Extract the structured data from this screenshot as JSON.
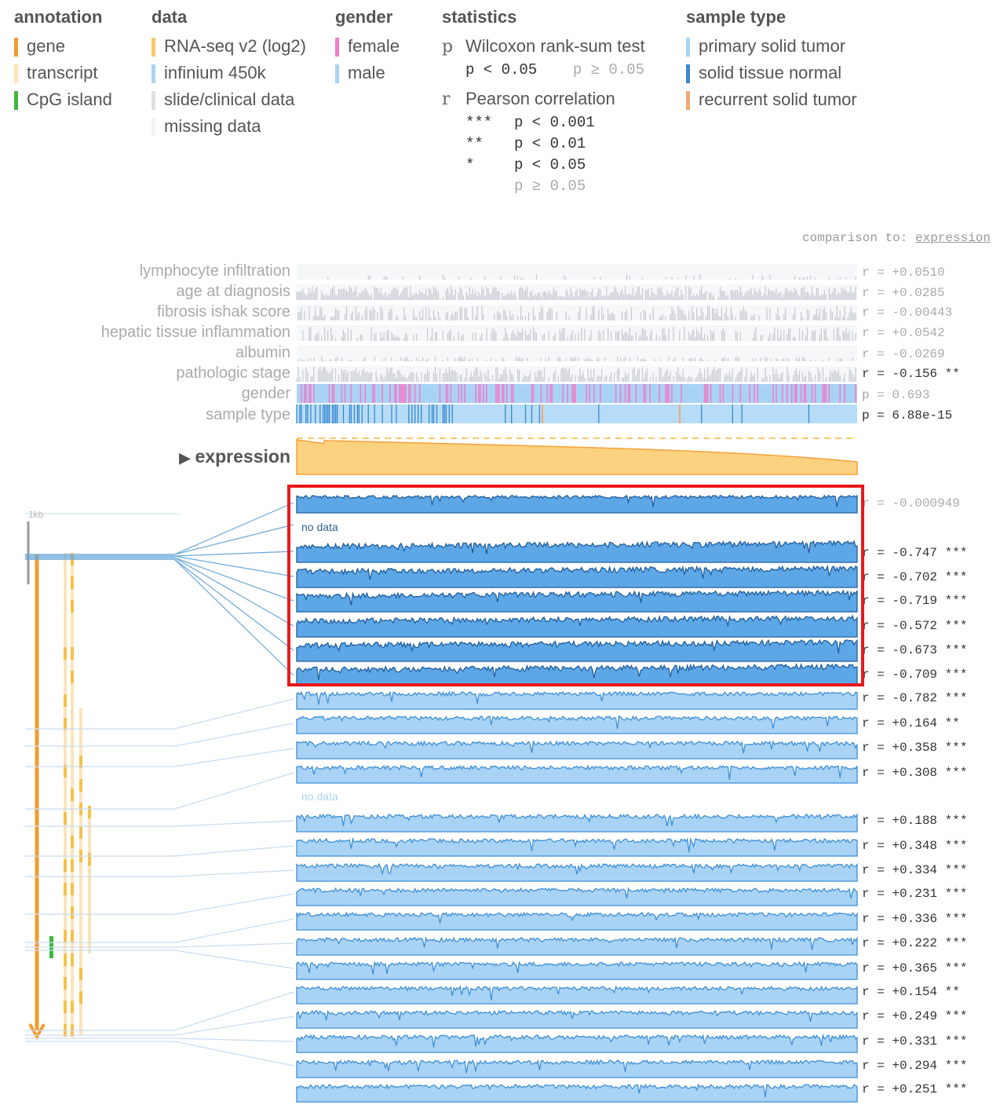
{
  "legend": {
    "annotation": {
      "title": "annotation",
      "items": [
        {
          "label": "gene",
          "color": "#f39c30"
        },
        {
          "label": "transcript",
          "color": "#fbe4b8"
        },
        {
          "label": "CpG island",
          "color": "#3cb93c"
        }
      ]
    },
    "data": {
      "title": "data",
      "items": [
        {
          "label": "RNA-seq v2 (log2)",
          "color": "#f9c96a"
        },
        {
          "label": "infinium 450k",
          "color": "#a9d3f5"
        },
        {
          "label": "slide/clinical data",
          "color": "#dde0e5"
        },
        {
          "label": "missing data",
          "color": "#f3f4f6"
        }
      ]
    },
    "gender": {
      "title": "gender",
      "items": [
        {
          "label": "female",
          "color": "#ef7fc8"
        },
        {
          "label": "male",
          "color": "#a9d3f5"
        }
      ]
    },
    "statistics": {
      "title": "statistics",
      "wilcoxon": {
        "symbol": "p",
        "label": "Wilcoxon rank-sum test",
        "sig": "p < 0.05",
        "nonsig": "p ≥ 0.05"
      },
      "pearson": {
        "symbol": "r",
        "label": "Pearson correlation",
        "levels": [
          {
            "stars": "***",
            "text": "p < 0.001"
          },
          {
            "stars": "**",
            "text": "p < 0.01"
          },
          {
            "stars": "*",
            "text": "p < 0.05"
          },
          {
            "stars": "",
            "text": "p ≥ 0.05"
          }
        ]
      }
    },
    "sample_type": {
      "title": "sample type",
      "items": [
        {
          "label": "primary solid tumor",
          "color": "#a9d3f5"
        },
        {
          "label": "solid tissue normal",
          "color": "#3a88d0"
        },
        {
          "label": "recurrent solid tumor",
          "color": "#f4a774"
        }
      ]
    }
  },
  "comparison": {
    "prefix": "comparison to:",
    "target": "expression"
  },
  "clinical_rows": [
    {
      "label": "lymphocyte infiltration",
      "stat": "r = +0.0510",
      "significant": false
    },
    {
      "label": "age at diagnosis",
      "stat": "r = +0.0285",
      "significant": false
    },
    {
      "label": "fibrosis ishak score",
      "stat": "r = -0.00443",
      "significant": false
    },
    {
      "label": "hepatic tissue inflammation",
      "stat": "r = +0.0542",
      "significant": false
    },
    {
      "label": "albumin",
      "stat": "r = -0.0269",
      "significant": false
    },
    {
      "label": "pathologic stage",
      "stat": "r = -0.156 **",
      "significant": true
    },
    {
      "label": "gender",
      "stat": "p = 0.693",
      "significant": false
    },
    {
      "label": "sample type",
      "stat": "p = 6.88e-15",
      "significant": true
    }
  ],
  "expression": {
    "label": "expression",
    "toggle_icon": "triangle-right-icon"
  },
  "methylation_no_data_text": "no data",
  "methylation_stats": [
    {
      "stat": "r = -0.000949",
      "significant": false
    },
    {
      "stat": "r = -0.747 ***",
      "significant": true
    },
    {
      "stat": "r = -0.702 ***",
      "significant": true
    },
    {
      "stat": "r = -0.719 ***",
      "significant": true
    },
    {
      "stat": "r = -0.572 ***",
      "significant": true
    },
    {
      "stat": "r = -0.673 ***",
      "significant": true
    },
    {
      "stat": "r = -0.709 ***",
      "significant": true
    },
    {
      "stat": "r = -0.782 ***",
      "significant": true
    },
    {
      "stat": "r = +0.164 **",
      "significant": true
    },
    {
      "stat": "r = +0.358 ***",
      "significant": true
    },
    {
      "stat": "r = +0.308 ***",
      "significant": true
    },
    {
      "stat": "r = +0.188 ***",
      "significant": true
    },
    {
      "stat": "r = +0.348 ***",
      "significant": true
    },
    {
      "stat": "r = +0.334 ***",
      "significant": true
    },
    {
      "stat": "r = +0.231 ***",
      "significant": true
    },
    {
      "stat": "r = +0.336 ***",
      "significant": true
    },
    {
      "stat": "r = +0.222 ***",
      "significant": true
    },
    {
      "stat": "r = +0.365 ***",
      "significant": true
    },
    {
      "stat": "r = +0.154 **",
      "significant": true
    },
    {
      "stat": "r = +0.249 ***",
      "significant": true
    },
    {
      "stat": "r = +0.331 ***",
      "significant": true
    },
    {
      "stat": "r = +0.294 ***",
      "significant": true
    },
    {
      "stat": "r = +0.251 ***",
      "significant": true
    }
  ],
  "scale_label": "1kb",
  "highlight_color": "#e8191d"
}
